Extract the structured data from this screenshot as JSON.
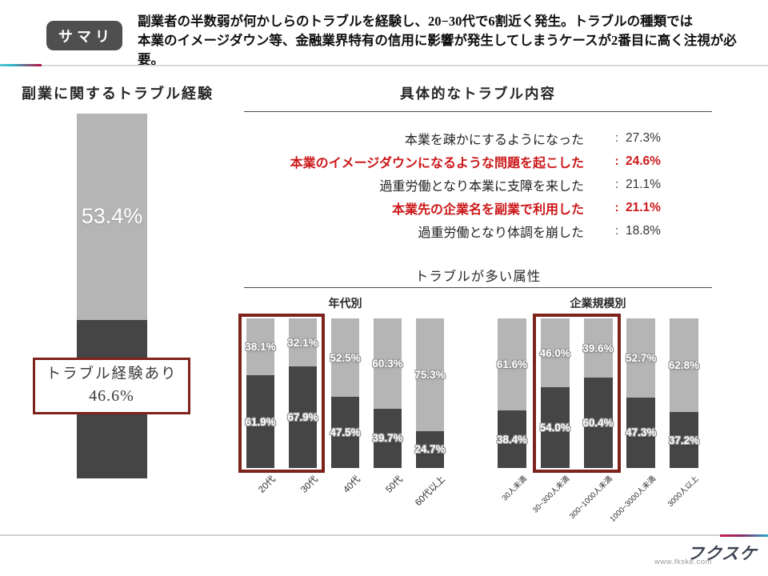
{
  "header": {
    "badge": "サマリ",
    "line1": "副業者の半数弱が何かしらのトラブルを経験し、20−30代で6割近く発生。トラブルの種類では",
    "line2": "本業のイメージダウン等、金融業界特有の信用に影響が発生してしまうケースが2番目に高く注視が必要。"
  },
  "left_box": {
    "line1": "トラブル経験あり",
    "line2": "46.6%"
  },
  "ui": {
    "separator": ":"
  },
  "footer": {
    "logo": "フクスケ",
    "url": "www.fkske.com"
  },
  "colors": {
    "bar_gray": "#b5b5b5",
    "bar_dark": "#454545",
    "highlight_text_red": "#cc1719",
    "highlight_box_maroon": "#7e231b",
    "badge_gray": "#4f4f4f",
    "accent_cyan": "#2fb4c8",
    "accent_crimson": "#b01e4f"
  },
  "chart_data": [
    {
      "type": "bar",
      "stacked": true,
      "title": "副業に関するトラブル経験",
      "categories": [
        "全体"
      ],
      "series": [
        {
          "name": "gray",
          "values": [
            53.4
          ]
        },
        {
          "name": "トラブル経験あり",
          "values": [
            46.6
          ]
        }
      ],
      "ylim": [
        0,
        100
      ],
      "annotation": "トラブル経験あり 46.6%"
    },
    {
      "type": "table",
      "title": "具体的なトラブル内容",
      "rows": [
        [
          "本業を疎かにするようになった",
          "27.3%"
        ],
        [
          "本業のイメージダウンになるような問題を起こした",
          "24.6%"
        ],
        [
          "過重労働となり本業に支障を来した",
          "21.1%"
        ],
        [
          "本業先の企業名を副業で利用した",
          "21.1%"
        ],
        [
          "過重労働となり体調を崩した",
          "18.8%"
        ]
      ],
      "highlighted_rows": [
        1,
        3
      ]
    },
    {
      "type": "bar",
      "stacked": true,
      "title": "トラブルが多い属性",
      "ylim": [
        0,
        100
      ],
      "groups": [
        {
          "name": "年代別",
          "categories": [
            "20代",
            "30代",
            "40代",
            "50代",
            "60代以上"
          ],
          "series": [
            {
              "name": "gray",
              "values": [
                38.1,
                32.1,
                52.5,
                60.3,
                75.3
              ]
            },
            {
              "name": "dark",
              "values": [
                61.9,
                67.9,
                47.5,
                39.7,
                24.7
              ]
            }
          ],
          "highlighted_categories": [
            "20代",
            "30代"
          ]
        },
        {
          "name": "企業規模別",
          "categories": [
            "30人未満",
            "30~300人未満",
            "300~1000人未満",
            "1000~3000人未満",
            "3000人以上"
          ],
          "series": [
            {
              "name": "gray",
              "values": [
                61.6,
                46.0,
                39.6,
                52.7,
                62.8
              ]
            },
            {
              "name": "dark",
              "values": [
                38.4,
                54.0,
                60.4,
                47.3,
                37.2
              ]
            }
          ],
          "highlighted_categories": [
            "30~300人未満",
            "300~1000人未満"
          ]
        }
      ]
    }
  ]
}
